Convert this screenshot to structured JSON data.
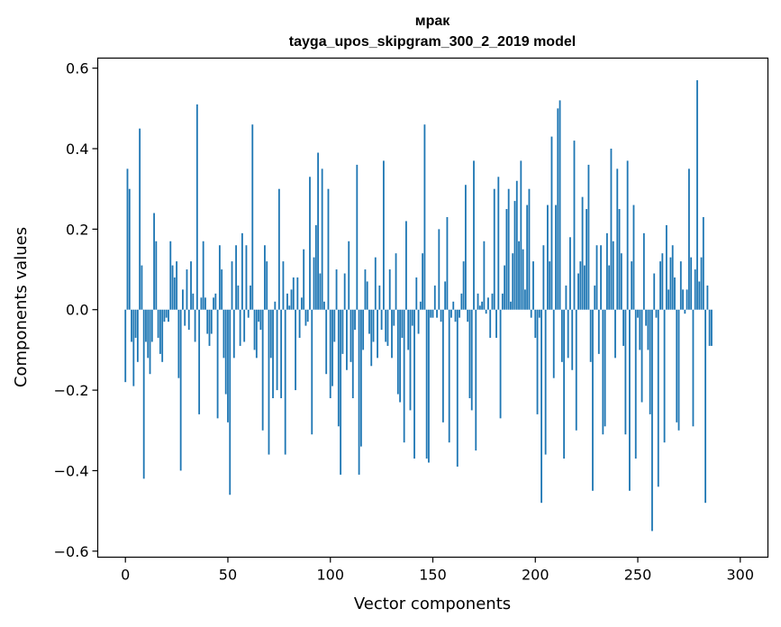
{
  "chart_data": {
    "type": "bar",
    "title": "мрак",
    "subtitle": "tayga_upos_skipgram_300_2_2019 model",
    "xlabel": "Vector components",
    "ylabel": "Components values",
    "xlim": [
      -13.5,
      313.5
    ],
    "ylim": [
      -0.615,
      0.625
    ],
    "xticks": [
      0,
      50,
      100,
      150,
      200,
      250,
      300
    ],
    "yticks": [
      -0.6,
      -0.4,
      -0.2,
      0.0,
      0.2,
      0.4,
      0.6
    ],
    "ytick_labels": [
      "−0.6",
      "−0.4",
      "−0.2",
      "0.0",
      "0.2",
      "0.4",
      "0.6"
    ],
    "xtick_labels": [
      "0",
      "50",
      "100",
      "150",
      "200",
      "250",
      "300"
    ],
    "bar_color": "#1f77b4",
    "grid": false,
    "x": "0..299 (component index)",
    "values": [
      -0.18,
      0.35,
      0.3,
      -0.08,
      -0.19,
      -0.07,
      -0.13,
      0.45,
      0.11,
      -0.42,
      -0.08,
      -0.12,
      -0.16,
      -0.08,
      0.24,
      0.17,
      -0.07,
      -0.11,
      -0.13,
      -0.03,
      -0.02,
      -0.03,
      0.17,
      0.11,
      0.08,
      0.12,
      -0.17,
      -0.4,
      0.05,
      -0.04,
      0.1,
      -0.05,
      0.12,
      0.04,
      -0.08,
      0.51,
      -0.26,
      0.03,
      0.17,
      0.03,
      -0.06,
      -0.09,
      -0.06,
      0.03,
      0.04,
      -0.27,
      0.16,
      0.1,
      -0.12,
      -0.21,
      -0.28,
      -0.46,
      0.12,
      -0.12,
      0.16,
      0.06,
      -0.09,
      0.19,
      -0.08,
      0.16,
      -0.02,
      0.06,
      0.46,
      -0.1,
      -0.12,
      -0.03,
      -0.05,
      -0.3,
      0.16,
      0.12,
      -0.36,
      -0.12,
      -0.22,
      0.02,
      -0.2,
      0.3,
      -0.22,
      0.12,
      -0.36,
      0.04,
      0.01,
      0.05,
      0.08,
      -0.2,
      0.08,
      -0.07,
      0.03,
      0.15,
      -0.04,
      -0.03,
      0.33,
      -0.31,
      0.13,
      0.21,
      0.39,
      0.09,
      0.35,
      0.02,
      -0.16,
      0.3,
      -0.22,
      -0.19,
      -0.08,
      0.1,
      -0.29,
      -0.41,
      -0.11,
      0.09,
      -0.15,
      0.17,
      -0.13,
      -0.22,
      -0.05,
      0.36,
      -0.41,
      -0.34,
      -0.1,
      0.1,
      0.07,
      -0.06,
      -0.14,
      -0.08,
      0.13,
      -0.12,
      0.06,
      -0.05,
      0.37,
      -0.08,
      -0.09,
      0.1,
      -0.12,
      -0.04,
      0.14,
      -0.21,
      -0.23,
      -0.07,
      -0.33,
      0.22,
      -0.1,
      -0.25,
      -0.04,
      -0.37,
      0.08,
      -0.06,
      0.02,
      0.14,
      0.46,
      -0.37,
      -0.38,
      -0.02,
      -0.02,
      0.06,
      -0.02,
      0.2,
      -0.03,
      -0.28,
      0.07,
      0.23,
      -0.33,
      -0.02,
      0.02,
      -0.03,
      -0.39,
      -0.02,
      0.04,
      0.12,
      0.31,
      -0.03,
      -0.22,
      -0.25,
      0.37,
      -0.35,
      0.04,
      0.01,
      0.02,
      0.17,
      -0.01,
      0.03,
      -0.07,
      0.04,
      0.3,
      -0.07,
      0.33,
      -0.27,
      0.04,
      0.11,
      0.25,
      0.3,
      0.02,
      0.14,
      0.27,
      0.32,
      0.17,
      0.37,
      0.15,
      0.05,
      0.26,
      0.3,
      -0.02,
      0.12,
      -0.07,
      -0.26,
      -0.02,
      -0.48,
      0.16,
      -0.36,
      0.26,
      0.12,
      0.43,
      -0.17,
      0.26,
      0.5,
      0.52,
      -0.13,
      -0.37,
      0.06,
      -0.12,
      0.18,
      -0.15,
      0.42,
      -0.3,
      0.09,
      0.12,
      0.28,
      0.11,
      0.25,
      0.36,
      -0.13,
      -0.45,
      0.06,
      0.16,
      -0.11,
      0.16,
      -0.31,
      -0.29,
      0.19,
      0.11,
      0.4,
      0.17,
      -0.12,
      0.35,
      0.25,
      0.14,
      -0.09,
      -0.31,
      0.37,
      -0.45,
      0.12,
      0.26,
      -0.37,
      -0.02,
      -0.1,
      -0.23,
      0.19,
      -0.04,
      -0.1,
      -0.26,
      -0.55,
      0.09,
      -0.02,
      -0.44,
      0.12,
      0.14,
      -0.33,
      0.21,
      0.05,
      0.13,
      0.16,
      0.08,
      -0.28,
      -0.3,
      0.12,
      0.05,
      -0.01,
      0.05,
      0.35,
      0.13,
      -0.29,
      0.1,
      0.57,
      0.07,
      0.13,
      0.23,
      -0.48,
      0.06,
      -0.09,
      -0.09
    ]
  }
}
